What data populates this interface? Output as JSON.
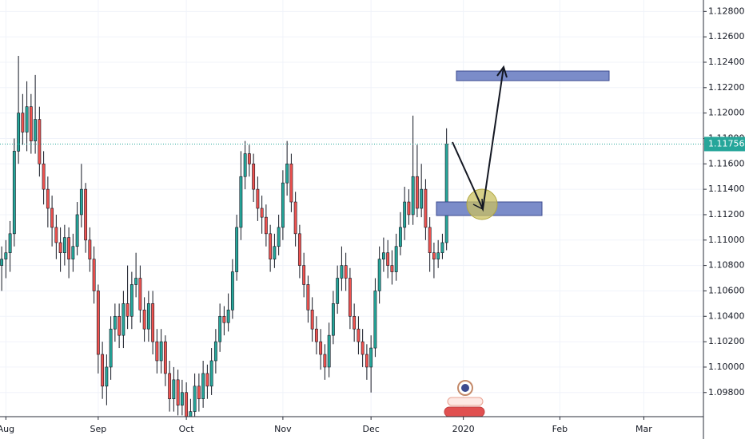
{
  "chart_data": {
    "type": "candlestick",
    "open": [
      1.108,
      1.1085,
      1.109,
      1.1105,
      1.117,
      1.12,
      1.1185,
      1.1205,
      1.1178,
      1.1195,
      1.116,
      1.114,
      1.1125,
      1.111,
      1.1098,
      1.109,
      1.1102,
      1.1085,
      1.1095,
      1.112,
      1.114,
      1.11,
      1.1085,
      1.106,
      1.101,
      1.0985,
      1.1,
      1.103,
      1.104,
      1.1025,
      1.105,
      1.104,
      1.1065,
      1.107,
      1.1045,
      1.103,
      1.105,
      1.102,
      1.1005,
      1.102,
      1.0995,
      1.0975,
      1.099,
      1.097,
      1.098,
      1.096,
      1.0965,
      1.0985,
      1.0975,
      1.0995,
      1.0985,
      1.1005,
      1.102,
      1.104,
      1.1035,
      1.1045,
      1.1075,
      1.111,
      1.115,
      1.1168,
      1.116,
      1.114,
      1.1125,
      1.1118,
      1.1105,
      1.1085,
      1.1095,
      1.111,
      1.1145,
      1.116,
      1.113,
      1.1105,
      1.108,
      1.1065,
      1.1045,
      1.103,
      1.102,
      1.101,
      1.1,
      1.1025,
      1.105,
      1.107,
      1.108,
      1.107,
      1.104,
      1.103,
      1.102,
      1.101,
      1.1,
      1.1015,
      1.106,
      1.1085,
      1.109,
      1.108,
      1.1075,
      1.1095,
      1.111,
      1.113,
      1.112,
      1.115,
      1.1125,
      1.114,
      1.111,
      1.109,
      1.1085,
      1.109,
      1.1098
    ],
    "high": [
      1.1095,
      1.11,
      1.1115,
      1.118,
      1.1245,
      1.1215,
      1.1225,
      1.1215,
      1.123,
      1.1205,
      1.117,
      1.115,
      1.1135,
      1.112,
      1.111,
      1.1112,
      1.111,
      1.1105,
      1.113,
      1.116,
      1.1145,
      1.111,
      1.1095,
      1.1065,
      1.102,
      1.101,
      1.104,
      1.105,
      1.105,
      1.106,
      1.108,
      1.1075,
      1.109,
      1.108,
      1.1055,
      1.106,
      1.106,
      1.103,
      1.103,
      1.1025,
      1.1005,
      1.1,
      1.0998,
      1.099,
      1.0988,
      1.0975,
      1.0995,
      1.0995,
      1.1005,
      1.1002,
      1.1015,
      1.103,
      1.105,
      1.1048,
      1.1058,
      1.1085,
      1.112,
      1.117,
      1.1178,
      1.1175,
      1.1168,
      1.115,
      1.1135,
      1.1128,
      1.1112,
      1.1105,
      1.112,
      1.1155,
      1.1178,
      1.1168,
      1.1138,
      1.1112,
      1.109,
      1.1072,
      1.1055,
      1.104,
      1.103,
      1.1018,
      1.1035,
      1.106,
      1.108,
      1.1095,
      1.109,
      1.1078,
      1.105,
      1.104,
      1.103,
      1.1018,
      1.1025,
      1.107,
      1.1095,
      1.1102,
      1.11,
      1.1092,
      1.1105,
      1.1122,
      1.1142,
      1.114,
      1.1198,
      1.1175,
      1.116,
      1.1148,
      1.1118,
      1.1098,
      1.11,
      1.1105,
      1.1188
    ],
    "low": [
      1.106,
      1.107,
      1.1075,
      1.1095,
      1.116,
      1.1175,
      1.117,
      1.1168,
      1.1168,
      1.115,
      1.1128,
      1.111,
      1.1095,
      1.1085,
      1.1075,
      1.108,
      1.107,
      1.1075,
      1.1088,
      1.111,
      1.109,
      1.1075,
      1.105,
      1.0995,
      1.0975,
      1.097,
      1.099,
      1.102,
      1.1015,
      1.1015,
      1.103,
      1.103,
      1.1055,
      1.1035,
      1.102,
      1.102,
      1.101,
      1.0995,
      1.0995,
      1.0985,
      1.0965,
      1.0965,
      1.0962,
      1.0962,
      1.0955,
      1.0955,
      1.0958,
      1.0965,
      1.0968,
      1.0975,
      1.0978,
      1.0995,
      1.1012,
      1.1025,
      1.1028,
      1.1038,
      1.1068,
      1.11,
      1.114,
      1.115,
      1.113,
      1.1115,
      1.1105,
      1.1095,
      1.1075,
      1.1078,
      1.1088,
      1.11,
      1.1135,
      1.1122,
      1.1095,
      1.107,
      1.1055,
      1.1035,
      1.102,
      1.101,
      1.0998,
      1.099,
      1.0992,
      1.1018,
      1.1042,
      1.106,
      1.106,
      1.103,
      1.102,
      1.101,
      1.1,
      1.099,
      1.098,
      1.1008,
      1.105,
      1.1075,
      1.107,
      1.1065,
      1.1068,
      1.1088,
      1.11,
      1.1112,
      1.1112,
      1.1118,
      1.1118,
      1.11,
      1.1075,
      1.107,
      1.1078,
      1.1085,
      1.1092
    ],
    "close": [
      1.1085,
      1.109,
      1.1105,
      1.117,
      1.12,
      1.1185,
      1.1205,
      1.1178,
      1.1195,
      1.116,
      1.114,
      1.1125,
      1.111,
      1.1098,
      1.109,
      1.1102,
      1.1085,
      1.1095,
      1.112,
      1.114,
      1.11,
      1.1085,
      1.106,
      1.101,
      1.0985,
      1.1,
      1.103,
      1.104,
      1.1025,
      1.105,
      1.104,
      1.1065,
      1.107,
      1.1045,
      1.103,
      1.105,
      1.102,
      1.1005,
      1.102,
      1.0995,
      1.0975,
      1.099,
      1.097,
      1.098,
      1.096,
      1.0965,
      1.0985,
      1.0975,
      1.0995,
      1.0985,
      1.1005,
      1.102,
      1.104,
      1.1035,
      1.1045,
      1.1075,
      1.111,
      1.115,
      1.1168,
      1.116,
      1.114,
      1.1125,
      1.1118,
      1.1105,
      1.1085,
      1.1095,
      1.111,
      1.1145,
      1.116,
      1.113,
      1.1105,
      1.108,
      1.1065,
      1.1045,
      1.103,
      1.102,
      1.101,
      1.1,
      1.1025,
      1.105,
      1.107,
      1.108,
      1.107,
      1.104,
      1.103,
      1.102,
      1.101,
      1.1,
      1.1015,
      1.106,
      1.1085,
      1.109,
      1.108,
      1.1075,
      1.1095,
      1.111,
      1.113,
      1.112,
      1.115,
      1.1125,
      1.114,
      1.111,
      1.109,
      1.1085,
      1.109,
      1.1098,
      1.11756
    ],
    "up_color": "#26a69a",
    "down_color": "#ef5350",
    "xlim": [
      -0.4,
      167.2
    ],
    "xticks": [
      {
        "value": 1,
        "label": "Aug"
      },
      {
        "value": 23,
        "label": "Sep"
      },
      {
        "value": 44,
        "label": "Oct"
      },
      {
        "value": 67,
        "label": "Nov"
      },
      {
        "value": 88,
        "label": "Dec"
      },
      {
        "value": 110,
        "label": "2020"
      },
      {
        "value": 133,
        "label": "Feb"
      },
      {
        "value": 153,
        "label": "Mar"
      }
    ],
    "ylim": [
      1.0961,
      1.1289
    ],
    "yticks": [
      {
        "value": 1.098,
        "label": "1.09800"
      },
      {
        "value": 1.1,
        "label": "1.10000"
      },
      {
        "value": 1.102,
        "label": "1.10200"
      },
      {
        "value": 1.104,
        "label": "1.10400"
      },
      {
        "value": 1.106,
        "label": "1.10600"
      },
      {
        "value": 1.108,
        "label": "1.10800"
      },
      {
        "value": 1.11,
        "label": "1.11000"
      },
      {
        "value": 1.112,
        "label": "1.11200"
      },
      {
        "value": 1.114,
        "label": "1.11400"
      },
      {
        "value": 1.116,
        "label": "1.11600"
      },
      {
        "value": 1.118,
        "label": "1.11800"
      },
      {
        "value": 1.12,
        "label": "1.12000"
      },
      {
        "value": 1.122,
        "label": "1.12200"
      },
      {
        "value": 1.124,
        "label": "1.12400"
      },
      {
        "value": 1.126,
        "label": "1.12600"
      },
      {
        "value": 1.128,
        "label": "1.12800"
      }
    ],
    "grid": true,
    "price_line_color": "#26a69a"
  }
}
